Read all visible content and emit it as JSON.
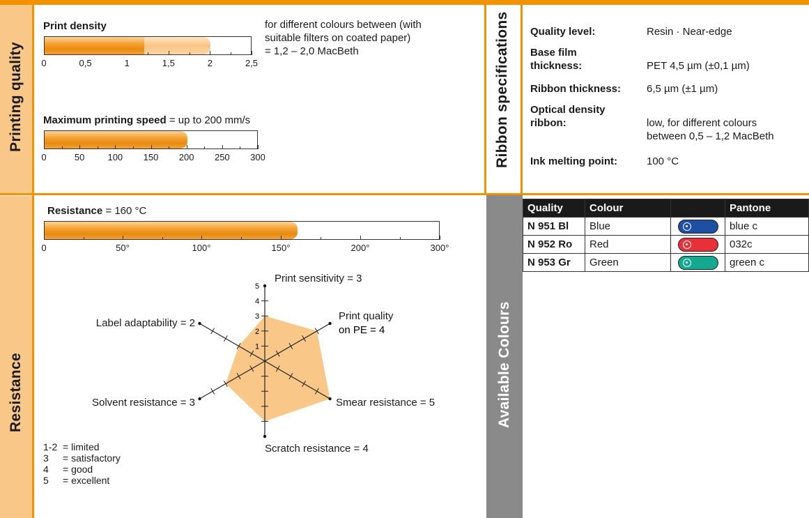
{
  "sections": {
    "printing_quality": "Printing quality",
    "resistance": "Resistance",
    "ribbon_specs": "Ribbon specifications",
    "available_colours": "Available Colours"
  },
  "print_density": {
    "title": "Print density",
    "note_lines": [
      "for different colours between (with",
      "suitable filters on coated paper)",
      " = 1,2 – 2,0 MacBeth"
    ],
    "value_min": 1.2,
    "value_max": 2.0,
    "scale_max": 2.5,
    "ticks": [
      "0",
      "0,5",
      "1",
      "1,5",
      "2",
      "2,5"
    ]
  },
  "print_speed": {
    "title": "Maximum printing speed",
    "value_text": " = up to 200 mm/s",
    "value": 200,
    "scale_max": 300,
    "ticks": [
      "0",
      "50",
      "100",
      "150",
      "200",
      "250",
      "300"
    ]
  },
  "resistance": {
    "title": "Resistance",
    "value_text": " = 160 °C",
    "value": 160,
    "ticks": [
      "0",
      "50°",
      "100°",
      "150°",
      "200°",
      "300°"
    ]
  },
  "chart_data": {
    "type": "radar",
    "scale_max": 5,
    "scale_ticks": [
      "1",
      "2",
      "3",
      "4",
      "5"
    ],
    "axes": [
      {
        "label": "Print sensitivity = 3",
        "value": 3
      },
      {
        "label": "Print quality",
        "label2": "on PE = 4",
        "value": 4
      },
      {
        "label": "Smear resistance = 5",
        "value": 5
      },
      {
        "label": "Scratch resistance = 4",
        "value": 4
      },
      {
        "label": "Solvent resistance = 3",
        "value": 3
      },
      {
        "label": "Label adaptability = 2",
        "value": 2
      }
    ],
    "fill_color": "#f9c787"
  },
  "legend": [
    {
      "key": "1-2",
      "text": "= limited"
    },
    {
      "key": "3",
      "text": "= satisfactory"
    },
    {
      "key": "4",
      "text": "= good"
    },
    {
      "key": "5",
      "text": "= excellent"
    }
  ],
  "specs": {
    "quality_level_label": "Quality level:",
    "quality_level_value": "Resin · Near-edge",
    "base_film_label1": "Base film",
    "base_film_label2": "thickness:",
    "base_film_value": "PET 4,5 µm (±0,1 µm)",
    "ribbon_thickness_label": "Ribbon thickness:",
    "ribbon_thickness_value": "6,5 µm (±1 µm)",
    "optical_label1": "Optical density",
    "optical_label2": "ribbon:",
    "optical_value1": "low, for different colours",
    "optical_value2": "between 0,5 – 1,2 MacBeth",
    "ink_label": "Ink melting point:",
    "ink_value": "100 °C"
  },
  "colours_table": {
    "headers": [
      "Quality",
      "Colour",
      "",
      "Pantone"
    ],
    "rows": [
      {
        "quality": "N 951 Bl",
        "colour": "Blue",
        "pantone": "blue c",
        "swatch": "#1d4fa3"
      },
      {
        "quality": "N 952 Ro",
        "colour": "Red",
        "pantone": "032c",
        "swatch": "#e8303a"
      },
      {
        "quality": "N 953 Gr",
        "colour": "Green",
        "pantone": "green c",
        "swatch": "#13a88f"
      }
    ]
  },
  "accent_color": "#f39200"
}
